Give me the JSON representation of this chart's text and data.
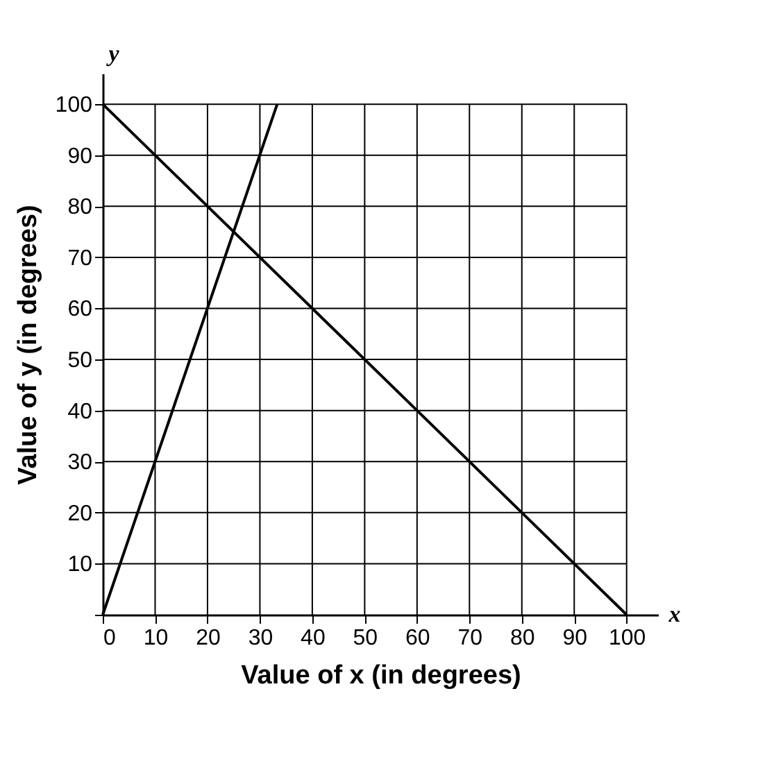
{
  "chart_data": {
    "type": "line",
    "xlabel": "Value of x (in degrees)",
    "ylabel": "Value of y (in degrees)",
    "annotations": [
      "y",
      "x"
    ],
    "series": [
      {
        "color": "#000000",
        "x": [
          0,
          33.3
        ],
        "values": [
          0,
          100
        ]
      },
      {
        "color": "#000000",
        "x": [
          0,
          100
        ],
        "values": [
          100,
          0
        ]
      }
    ],
    "xlim": [
      0,
      106
    ],
    "ylim": [
      0,
      106
    ],
    "xticks": [
      0,
      10,
      20,
      30,
      40,
      50,
      60,
      70,
      80,
      90,
      100
    ],
    "yticks": [
      {
        "value": 0,
        "label": null
      },
      10,
      20,
      30,
      40,
      50,
      60,
      70,
      80,
      90,
      100
    ],
    "grid": true,
    "legend": false,
    "marker": "none",
    "line_style": "solid"
  }
}
